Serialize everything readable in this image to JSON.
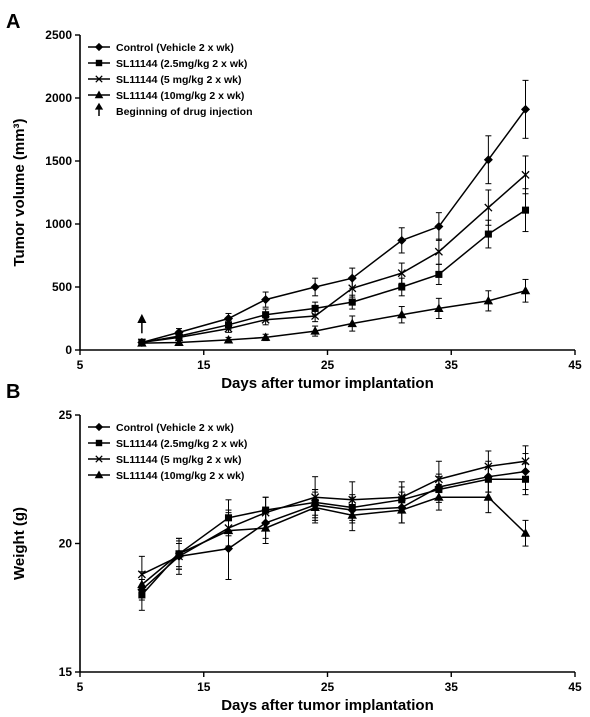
{
  "colors": {
    "ink": "#000000",
    "background": "#ffffff"
  },
  "series_markers": [
    "diamond",
    "square",
    "x",
    "triangle"
  ],
  "chart_data": [
    {
      "panel": "A",
      "type": "line",
      "xlabel": "Days after tumor implantation",
      "ylabel": "Tumor volume (mm³)",
      "xlim": [
        5,
        45
      ],
      "ylim": [
        0,
        2500
      ],
      "xticks": [
        5,
        15,
        25,
        35,
        45
      ],
      "yticks": [
        0,
        500,
        1000,
        1500,
        2000,
        2500
      ],
      "legend_position": "top-left",
      "x": [
        10,
        13,
        17,
        20,
        24,
        27,
        31,
        34,
        38,
        41
      ],
      "series": [
        {
          "name": "Control (Vehicle 2 x wk)",
          "values": [
            60,
            140,
            250,
            400,
            500,
            570,
            870,
            980,
            1510,
            1910
          ],
          "errors": [
            25,
            30,
            40,
            60,
            70,
            80,
            100,
            110,
            190,
            230
          ]
        },
        {
          "name": "SL11144 (2.5mg/kg 2 x wk)",
          "values": [
            60,
            110,
            200,
            280,
            330,
            380,
            500,
            600,
            920,
            1110
          ],
          "errors": [
            20,
            25,
            35,
            45,
            50,
            55,
            70,
            80,
            110,
            170
          ]
        },
        {
          "name": "SL11144 (5 mg/kg 2 x wk)",
          "values": [
            60,
            100,
            170,
            240,
            270,
            490,
            610,
            780,
            1130,
            1390
          ],
          "errors": [
            20,
            25,
            30,
            40,
            45,
            70,
            80,
            100,
            140,
            150
          ]
        },
        {
          "name": "SL11144 (10mg/kg 2 x wk)",
          "values": [
            55,
            60,
            80,
            100,
            150,
            210,
            280,
            330,
            390,
            470
          ],
          "errors": [
            15,
            15,
            20,
            25,
            40,
            60,
            65,
            80,
            80,
            90
          ]
        }
      ],
      "annotation": {
        "label": "Beginning of drug injection",
        "x": 10
      }
    },
    {
      "panel": "B",
      "type": "line",
      "xlabel": "Days after tumor implantation",
      "ylabel": "Weight (g)",
      "xlim": [
        5,
        45
      ],
      "ylim": [
        15,
        25
      ],
      "xticks": [
        5,
        15,
        25,
        35,
        45
      ],
      "yticks": [
        15,
        20,
        25
      ],
      "legend_position": "top-left",
      "x": [
        10,
        13,
        17,
        20,
        24,
        27,
        31,
        34,
        38,
        41
      ],
      "series": [
        {
          "name": "Control (Vehicle 2 x wk)",
          "values": [
            18.2,
            19.5,
            19.8,
            20.8,
            21.5,
            21.3,
            21.4,
            22.2,
            22.6,
            22.8
          ],
          "errors": [
            0.4,
            0.5,
            1.2,
            0.6,
            0.6,
            0.5,
            0.6,
            0.5,
            0.6,
            0.7
          ]
        },
        {
          "name": "SL11144 (2.5mg/kg 2 x wk)",
          "values": [
            18.0,
            19.6,
            21.0,
            21.3,
            21.6,
            21.4,
            21.7,
            22.1,
            22.5,
            22.5
          ],
          "errors": [
            0.6,
            0.5,
            0.7,
            0.5,
            0.5,
            0.5,
            0.5,
            0.5,
            0.5,
            0.6
          ]
        },
        {
          "name": "SL11144 (5 mg/kg 2 x wk)",
          "values": [
            18.8,
            19.5,
            20.6,
            21.2,
            21.8,
            21.7,
            21.8,
            22.5,
            23.0,
            23.2
          ],
          "errors": [
            0.7,
            0.7,
            0.7,
            0.6,
            0.8,
            0.7,
            0.6,
            0.7,
            0.6,
            0.6
          ]
        },
        {
          "name": "SL11144 (10mg/kg 2 x wk)",
          "values": [
            18.4,
            19.6,
            20.5,
            20.6,
            21.4,
            21.1,
            21.3,
            21.8,
            21.8,
            20.4
          ],
          "errors": [
            0.5,
            0.6,
            0.7,
            0.6,
            0.6,
            0.6,
            0.5,
            0.5,
            0.6,
            0.5
          ]
        }
      ]
    }
  ]
}
